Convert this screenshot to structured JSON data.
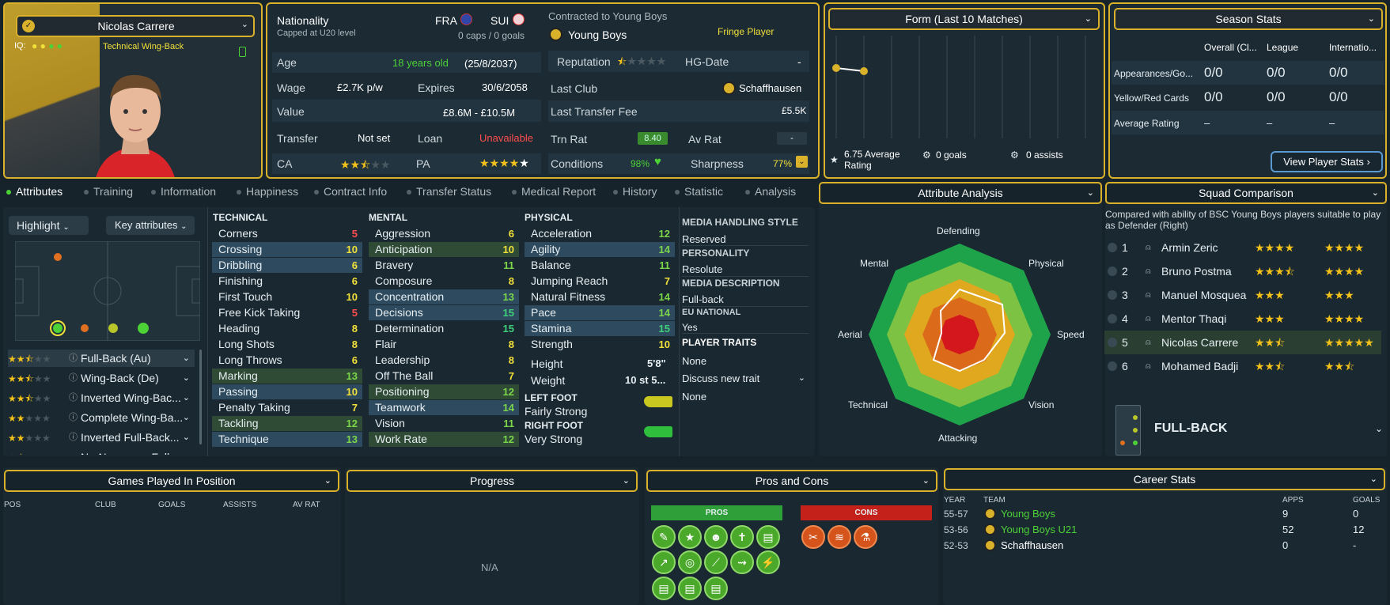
{
  "profile": {
    "name": "Nicolas Carrere",
    "iq_label": "IQ:",
    "role": "Technical Wing-Back"
  },
  "info": {
    "nationality_label": "Nationality",
    "nationality_sub": "Capped at U20 level",
    "nat1": "FRA",
    "nat2": "SUI",
    "caps": "0 caps / 0 goals",
    "age_label": "Age",
    "age": "18 years old",
    "dob": "(25/8/2037)",
    "wage_label": "Wage",
    "wage": "£2.7K p/w",
    "expires_label": "Expires",
    "expires": "30/6/2058",
    "value_label": "Value",
    "value": "£8.6M - £10.5M",
    "transfer_label": "Transfer",
    "transfer": "Not set",
    "loan_label": "Loan",
    "loan": "Unavailable",
    "ca_label": "CA",
    "pa_label": "PA"
  },
  "contract": {
    "label": "Contracted to Young Boys",
    "club": "Young Boys",
    "status": "Fringe Player",
    "reputation_label": "Reputation",
    "hg_label": "HG-Date",
    "hg": "-",
    "last_club_label": "Last Club",
    "last_club": "Schaffhausen",
    "last_fee_label": "Last Transfer Fee",
    "last_fee": "£5.5K",
    "trn_label": "Trn Rat",
    "trn": "8.40",
    "av_label": "Av Rat",
    "av": "-",
    "cond_label": "Conditions",
    "cond": "98%",
    "sharp_label": "Sharpness",
    "sharp": "77%"
  },
  "form": {
    "title": "Form (Last 10 Matches)",
    "avg": "6.75 Average Rating",
    "goals": "0 goals",
    "assists": "0 assists"
  },
  "season": {
    "title": "Season Stats",
    "cols": [
      "Overall (Cl...",
      "League",
      "Internatio..."
    ],
    "rows": [
      {
        "label": "Appearances/Go...",
        "v": [
          "0/0",
          "0/0",
          "0/0"
        ]
      },
      {
        "label": "Yellow/Red Cards",
        "v": [
          "0/0",
          "0/0",
          "0/0"
        ]
      },
      {
        "label": "Average Rating",
        "v": [
          "–",
          "–",
          "–"
        ]
      }
    ],
    "button": "View Player Stats"
  },
  "tabs": [
    "Attributes",
    "Training",
    "Information",
    "Happiness",
    "Contract Info",
    "Transfer Status",
    "Medical Report",
    "History",
    "Statistic",
    "Analysis"
  ],
  "controls": {
    "highlight": "Highlight",
    "key": "Key attributes"
  },
  "positions": [
    {
      "label": "Full-Back (Au)"
    },
    {
      "label": "Wing-Back (De)"
    },
    {
      "label": "Inverted Wing-Bac..."
    },
    {
      "label": "Complete Wing-Ba..."
    },
    {
      "label": "Inverted Full-Back..."
    },
    {
      "label": "No-Nonsense Full..."
    }
  ],
  "technical": {
    "title": "TECHNICAL",
    "items": [
      {
        "n": "Corners",
        "v": "5"
      },
      {
        "n": "Crossing",
        "v": "10"
      },
      {
        "n": "Dribbling",
        "v": "6"
      },
      {
        "n": "Finishing",
        "v": "6"
      },
      {
        "n": "First Touch",
        "v": "10"
      },
      {
        "n": "Free Kick Taking",
        "v": "5"
      },
      {
        "n": "Heading",
        "v": "8"
      },
      {
        "n": "Long Shots",
        "v": "8"
      },
      {
        "n": "Long Throws",
        "v": "6"
      },
      {
        "n": "Marking",
        "v": "13"
      },
      {
        "n": "Passing",
        "v": "10"
      },
      {
        "n": "Penalty Taking",
        "v": "7"
      },
      {
        "n": "Tackling",
        "v": "12"
      },
      {
        "n": "Technique",
        "v": "13"
      }
    ]
  },
  "mental": {
    "title": "MENTAL",
    "items": [
      {
        "n": "Aggression",
        "v": "6"
      },
      {
        "n": "Anticipation",
        "v": "10"
      },
      {
        "n": "Bravery",
        "v": "11"
      },
      {
        "n": "Composure",
        "v": "8"
      },
      {
        "n": "Concentration",
        "v": "13"
      },
      {
        "n": "Decisions",
        "v": "15"
      },
      {
        "n": "Determination",
        "v": "15"
      },
      {
        "n": "Flair",
        "v": "8"
      },
      {
        "n": "Leadership",
        "v": "8"
      },
      {
        "n": "Off The Ball",
        "v": "7"
      },
      {
        "n": "Positioning",
        "v": "12"
      },
      {
        "n": "Teamwork",
        "v": "14"
      },
      {
        "n": "Vision",
        "v": "11"
      },
      {
        "n": "Work Rate",
        "v": "12"
      }
    ]
  },
  "physical": {
    "title": "PHYSICAL",
    "items": [
      {
        "n": "Acceleration",
        "v": "12"
      },
      {
        "n": "Agility",
        "v": "14"
      },
      {
        "n": "Balance",
        "v": "11"
      },
      {
        "n": "Jumping Reach",
        "v": "7"
      },
      {
        "n": "Natural Fitness",
        "v": "14"
      },
      {
        "n": "Pace",
        "v": "14"
      },
      {
        "n": "Stamina",
        "v": "15"
      },
      {
        "n": "Strength",
        "v": "10"
      }
    ],
    "height_label": "Height",
    "height": "5'8\"",
    "weight_label": "Weight",
    "weight": "10 st 5...",
    "left_foot_label": "LEFT FOOT",
    "left_foot": "Fairly Strong",
    "right_foot_label": "RIGHT FOOT",
    "right_foot": "Very Strong"
  },
  "media": {
    "h1": "MEDIA HANDLING STYLE",
    "v1": "Reserved",
    "h2": "PERSONALITY",
    "v2": "Resolute",
    "h3": "MEDIA DESCRIPTION",
    "v3": "Full-back",
    "h4": "EU NATIONAL",
    "v4": "Yes",
    "h5": "PLAYER TRAITS",
    "v5": "None",
    "discuss": "Discuss new trait",
    "v6": "None"
  },
  "analysis": {
    "title": "Attribute Analysis",
    "labels": [
      "Defending",
      "Physical",
      "Speed",
      "Vision",
      "Attacking",
      "Technical",
      "Aerial",
      "Mental"
    ]
  },
  "squad": {
    "title": "Squad Comparison",
    "desc": "Compared with ability of BSC Young Boys players suitable to play as Defender (Right)",
    "rows": [
      {
        "i": "1",
        "n": "Armin Zeric"
      },
      {
        "i": "2",
        "n": "Bruno Postma"
      },
      {
        "i": "3",
        "n": "Manuel Mosquea"
      },
      {
        "i": "4",
        "n": "Mentor Thaqi"
      },
      {
        "i": "5",
        "n": "Nicolas Carrere"
      },
      {
        "i": "6",
        "n": "Mohamed Badji"
      }
    ],
    "position": "FULL-BACK"
  },
  "games": {
    "title": "Games Played In Position",
    "cols": [
      "POS",
      "CLUB",
      "GOALS",
      "ASSISTS",
      "AV RAT"
    ]
  },
  "progress": {
    "title": "Progress",
    "na": "N/A"
  },
  "pros": {
    "title": "Pros and Cons",
    "pros": "PROS",
    "cons": "CONS"
  },
  "career": {
    "title": "Career Stats",
    "cols": [
      "YEAR",
      "TEAM",
      "APPS",
      "GOALS"
    ],
    "rows": [
      {
        "y": "55-57",
        "t": "Young Boys",
        "a": "9",
        "g": "0"
      },
      {
        "y": "53-56",
        "t": "Young Boys U21",
        "a": "52",
        "g": "12"
      },
      {
        "y": "52-53",
        "t": "Schaffhausen",
        "a": "0",
        "g": "-"
      }
    ]
  }
}
